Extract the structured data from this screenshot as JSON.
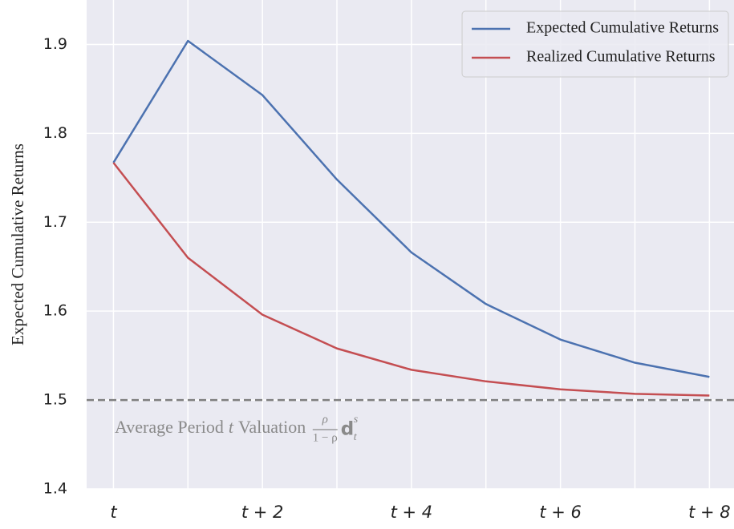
{
  "chart_data": {
    "type": "line",
    "ylabel": "Expected Cumulative Returns",
    "x": [
      0,
      1,
      2,
      3,
      4,
      5,
      6,
      7,
      8
    ],
    "series": [
      {
        "name": "Expected Cumulative Returns",
        "color": "#4c72b0",
        "values": [
          1.767,
          1.904,
          1.843,
          1.748,
          1.666,
          1.608,
          1.568,
          1.542,
          1.526
        ]
      },
      {
        "name": "Realized Cumulative Returns",
        "color": "#c44e52",
        "values": [
          1.767,
          1.66,
          1.596,
          1.558,
          1.534,
          1.521,
          1.512,
          1.507,
          1.505
        ]
      }
    ],
    "xlim": [
      -0.36,
      8.33
    ],
    "xticks": [
      {
        "value": 0,
        "label": "t"
      },
      {
        "value": 2,
        "label": "t + 2"
      },
      {
        "value": 4,
        "label": "t + 4"
      },
      {
        "value": 6,
        "label": "t + 6"
      },
      {
        "value": 8,
        "label": "t + 8"
      }
    ],
    "x_minor_ticks": [
      1,
      3,
      5,
      7
    ],
    "ylim": [
      1.4,
      1.95
    ],
    "yticks": [
      1.4,
      1.5,
      1.6,
      1.7,
      1.8,
      1.9
    ],
    "grid": true,
    "legend": "upper right",
    "hline": {
      "value": 1.5,
      "color": "#7f7f7f"
    },
    "annotation": {
      "text": "Average Period",
      "var": "t",
      "text2": "Valuation",
      "frac_num": "ρ",
      "frac_den": "1 − ρ",
      "symbol": "d",
      "sup": "s",
      "sub": "t"
    }
  }
}
